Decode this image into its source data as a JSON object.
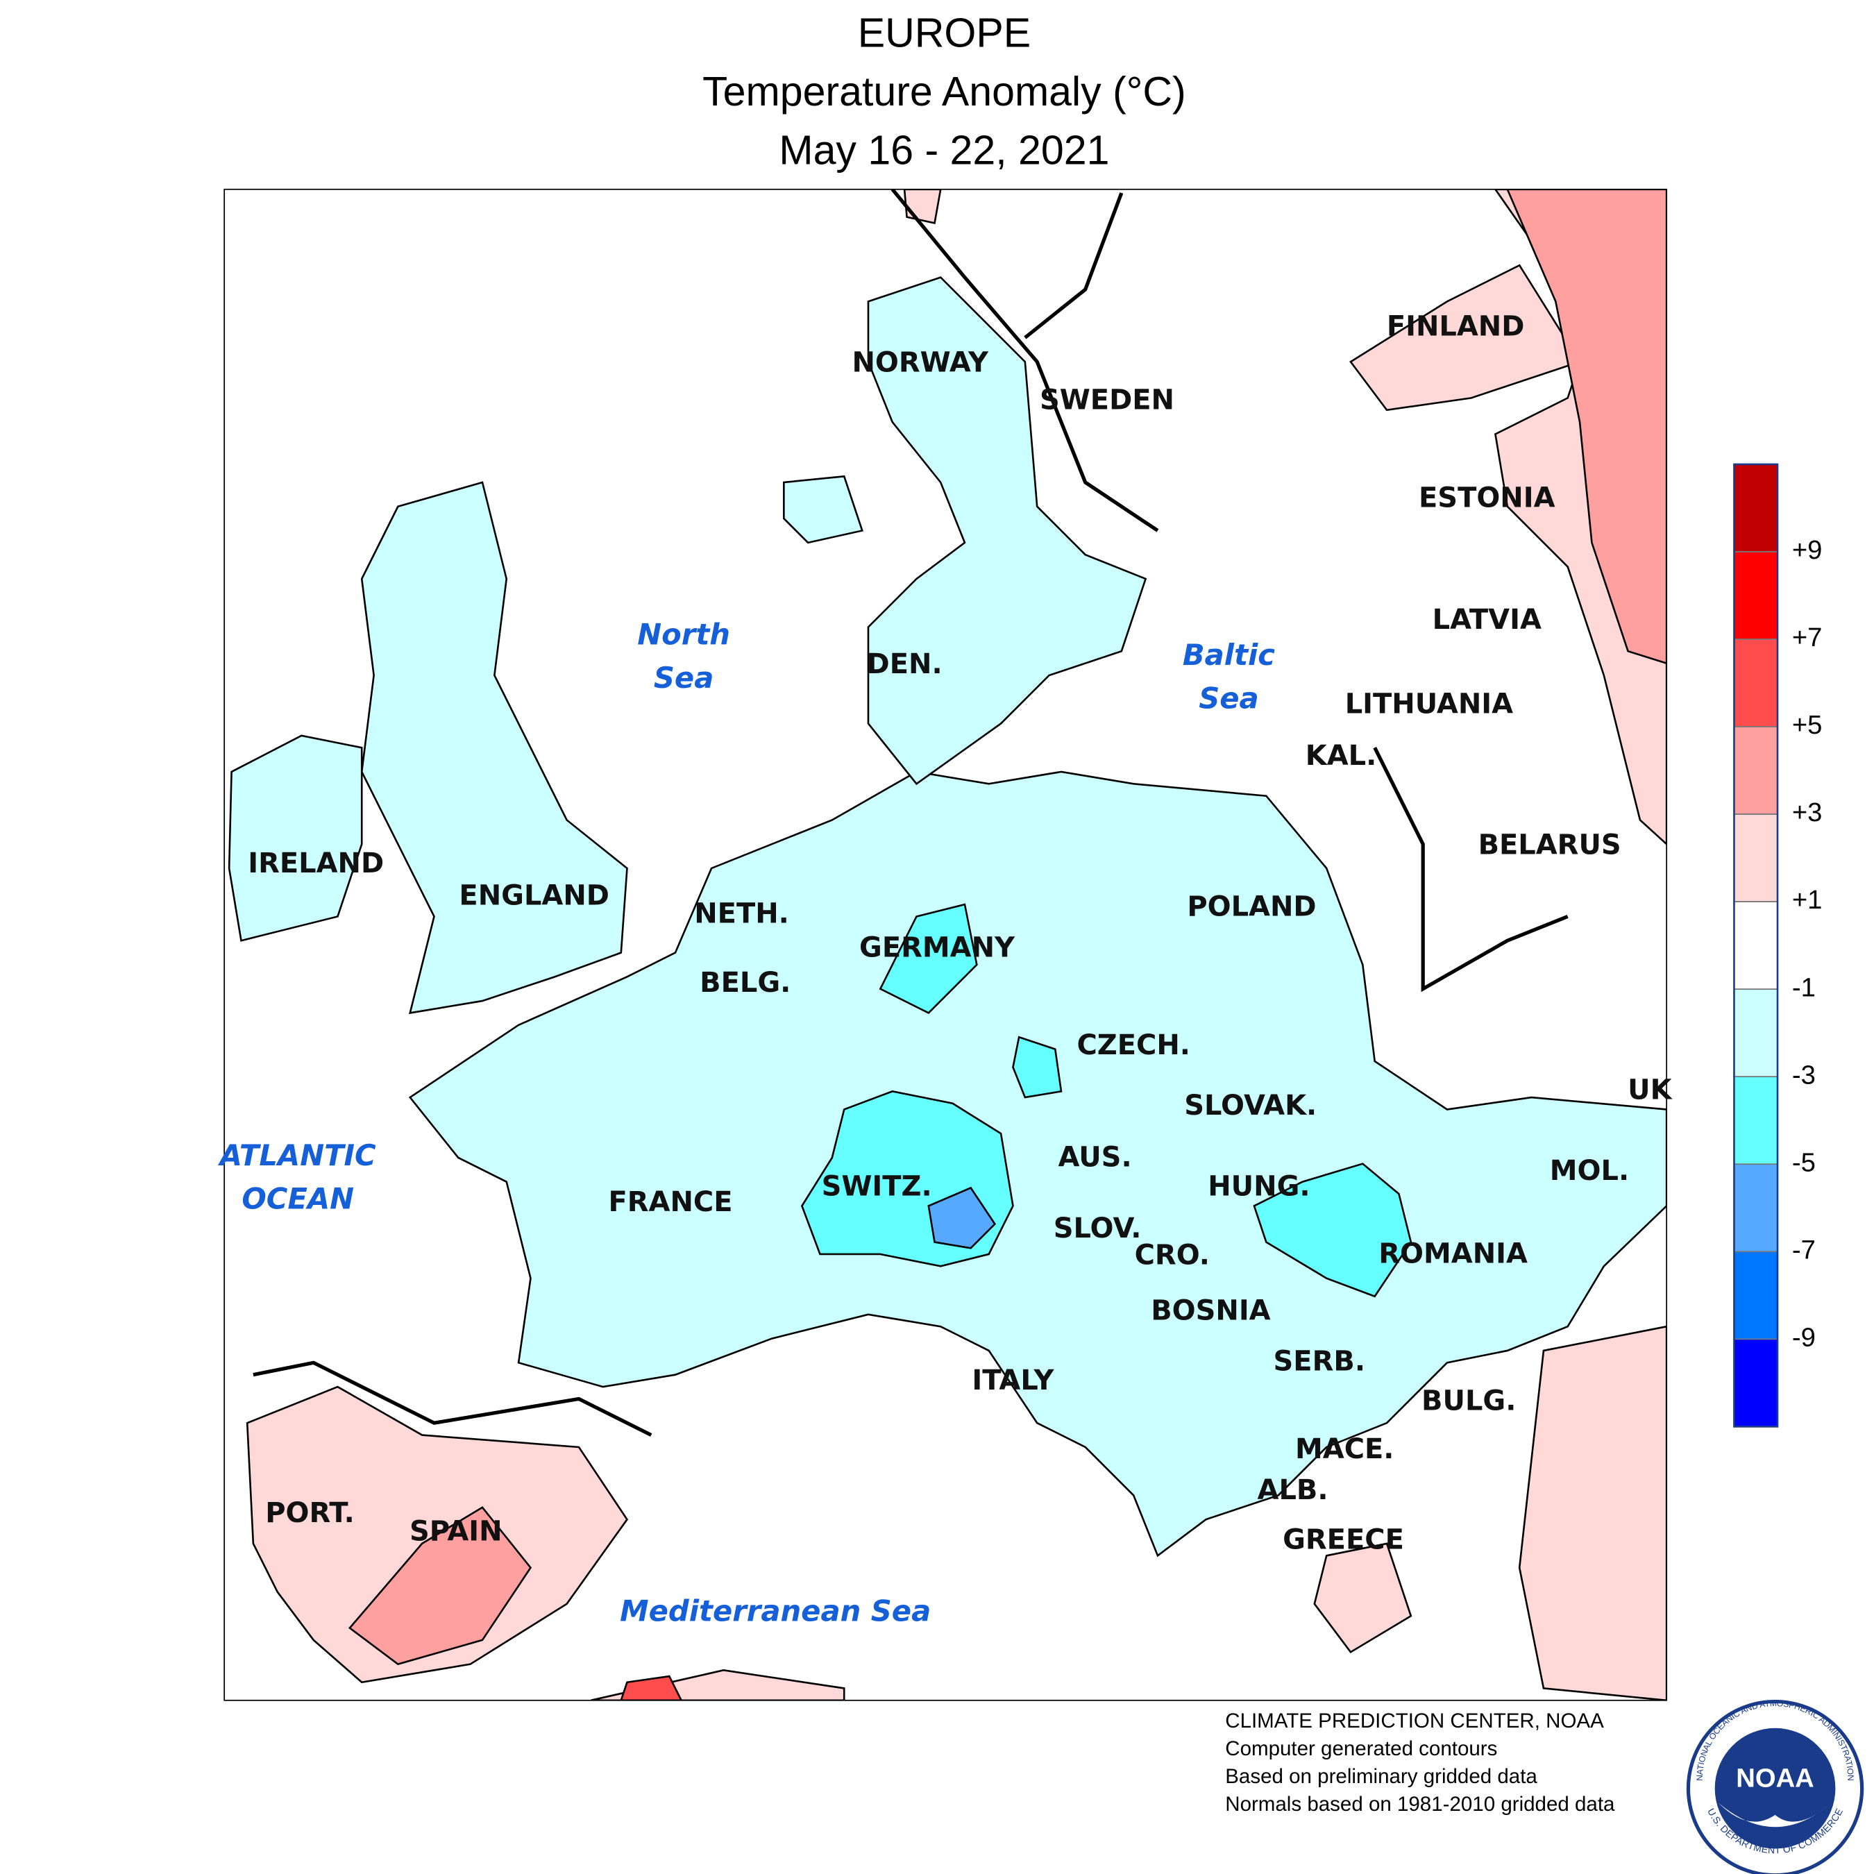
{
  "title": {
    "lines": [
      "EUROPE",
      "Temperature Anomaly (°C)",
      "May 16 - 22, 2021"
    ]
  },
  "map": {
    "countries": [
      "NORWAY",
      "SWEDEN",
      "FINLAND",
      "ESTONIA",
      "LATVIA",
      "LITHUANIA",
      "KAL.",
      "BELARUS",
      "DEN.",
      "IRELAND",
      "ENGLAND",
      "NETH.",
      "GERMANY",
      "POLAND",
      "BELG.",
      "CZECH.",
      "SLOVAK.",
      "UK",
      "AUS.",
      "MOL.",
      "HUNG.",
      "FRANCE",
      "SWITZ.",
      "SLOV.",
      "CRO.",
      "ROMANIA",
      "BOSNIA",
      "SERB.",
      "ITALY",
      "BULG.",
      "MACE.",
      "ALB.",
      "PORT.",
      "SPAIN",
      "GREECE"
    ],
    "seas": [
      [
        "North",
        "Sea"
      ],
      [
        "Baltic",
        "Sea"
      ],
      [
        "ATLANTIC",
        "OCEAN"
      ],
      [
        "Mediterranean Sea"
      ]
    ]
  },
  "legend": {
    "colors": [
      "#c00000",
      "#ff0000",
      "#ff4c4c",
      "#ffa0a0",
      "#ffd8d8",
      "#ffffff",
      "#ccffff",
      "#66ffff",
      "#55aaff",
      "#0077ff",
      "#0000ff"
    ],
    "ticks": [
      "+9",
      "+7",
      "+5",
      "+3",
      "+1",
      "-1",
      "-3",
      "-5",
      "-7",
      "-9"
    ]
  },
  "footer": {
    "lines": [
      "CLIMATE PREDICTION CENTER, NOAA",
      "Computer generated contours",
      "Based on preliminary gridded data",
      "Normals based on 1981-2010 gridded data"
    ]
  },
  "logo": {
    "text": "NOAA",
    "ring_top": "NATIONAL OCEANIC AND ATMOSPHERIC ADMINISTRATION",
    "ring_bottom": "U.S. DEPARTMENT OF COMMERCE"
  }
}
